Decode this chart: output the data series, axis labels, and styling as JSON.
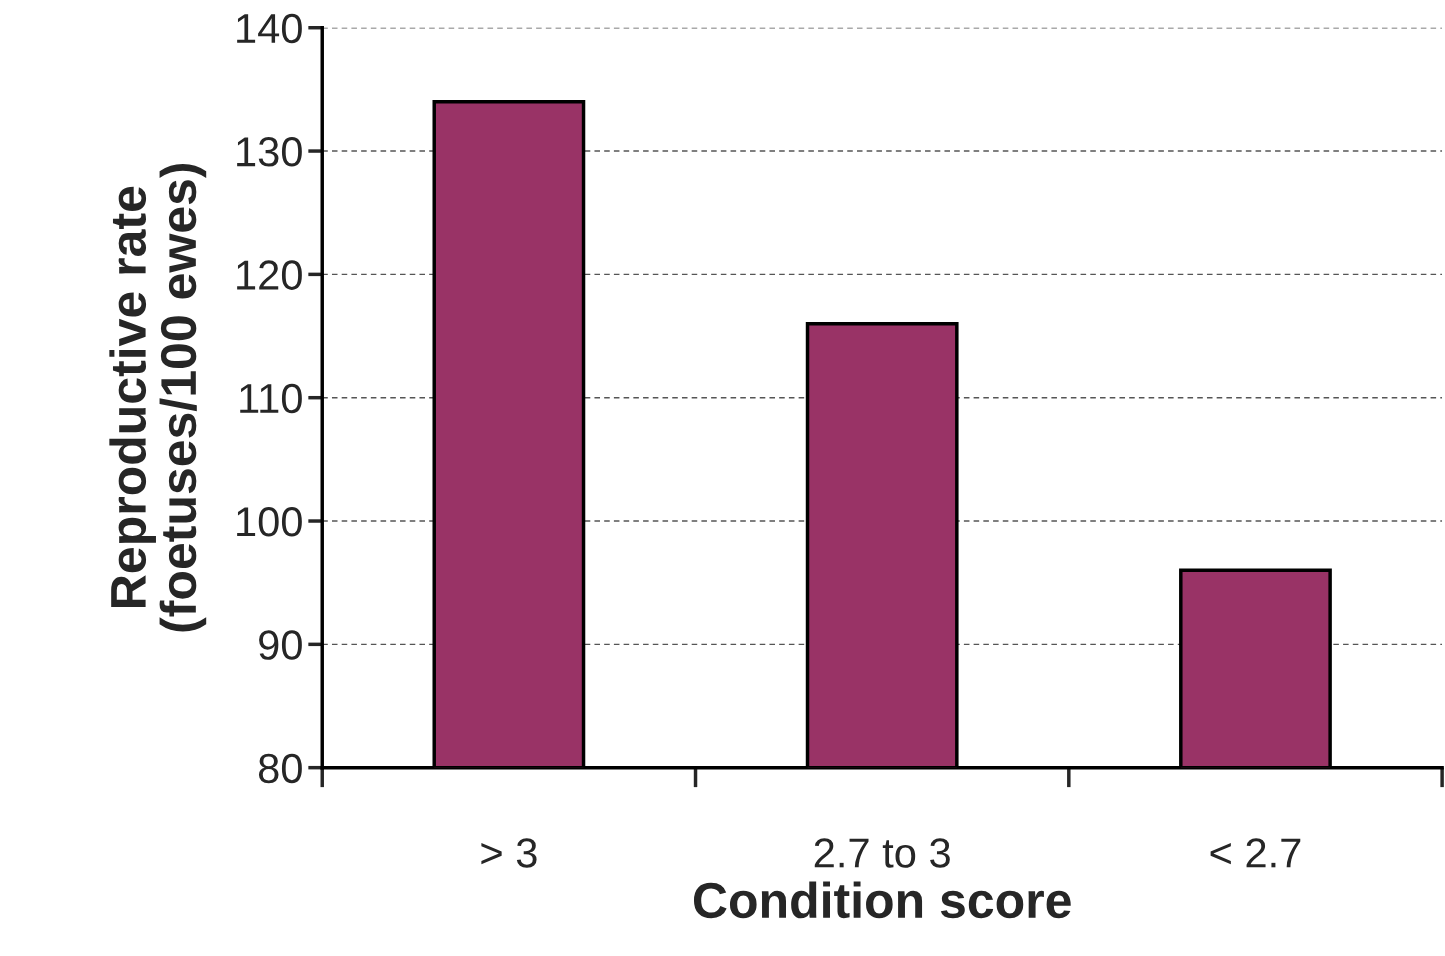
{
  "chart_data": {
    "type": "bar",
    "xlabel": "Condition score",
    "ylabel": "Reproductive rate\n(foetuses/100 ewes)",
    "categories": [
      "> 3",
      "2.7 to 3",
      "< 2.7"
    ],
    "values": [
      134,
      116,
      96
    ],
    "color": "#993366",
    "ylim": [
      80,
      140
    ],
    "yticks": [
      80,
      90,
      100,
      110,
      120,
      130,
      140
    ],
    "grid": "y"
  }
}
